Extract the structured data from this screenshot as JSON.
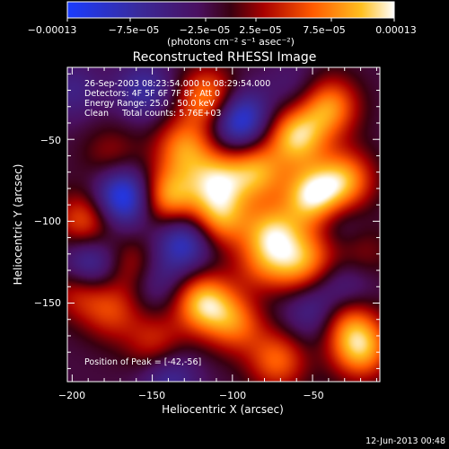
{
  "chart_data": {
    "type": "heatmap",
    "title": "Reconstructed RHESSI Image",
    "xlabel": "Heliocentric X (arcsec)",
    "ylabel": "Heliocentric Y (arcsec)",
    "xlim": [
      -203,
      -8
    ],
    "ylim": [
      -198,
      -6
    ],
    "xticks": [
      -200,
      -150,
      -100,
      -50
    ],
    "xtick_labels": [
      "−200",
      "−150",
      "−100",
      "−50"
    ],
    "yticks": [
      -50,
      -100,
      -150
    ],
    "ytick_labels": [
      "−50",
      "−100",
      "−150"
    ],
    "colorbar": {
      "range": [
        -0.00013,
        0.00013
      ],
      "ticks": [
        -0.00013,
        -7.5e-05,
        -2.5e-05,
        2.5e-05,
        7.5e-05,
        0.00013
      ],
      "tick_labels": [
        "−0.00013",
        "−7.5e−05",
        "−2.5e−05",
        "2.5e−05",
        "7.5e−05",
        "0.00013"
      ],
      "units_label": "(photons cm⁻² s⁻¹ asec⁻²)"
    },
    "annotations": [
      "26-Sep-2003 08:23:54.000 to 08:29:54.000",
      "Detectors: 4F 5F 6F 7F 8F, Att 0",
      "Energy Range: 25.0 - 50.0 keV",
      "Clean     Total counts: 5.76E+03"
    ],
    "peak_label": "Position of Peak = [-42,-56]",
    "timestamp": "12-Jun-2013 00:48",
    "sources": [
      {
        "x": -115,
        "y": -25,
        "v": 0.0001
      },
      {
        "x": -60,
        "y": -48,
        "v": 0.00012
      },
      {
        "x": -40,
        "y": -30,
        "v": 0.0001
      },
      {
        "x": -30,
        "y": -75,
        "v": 0.0001
      },
      {
        "x": -50,
        "y": -85,
        "v": 0.00013
      },
      {
        "x": -85,
        "y": -70,
        "v": 0.0001
      },
      {
        "x": -110,
        "y": -75,
        "v": 0.0001
      },
      {
        "x": -130,
        "y": -55,
        "v": 9e-05
      },
      {
        "x": -140,
        "y": -85,
        "v": 0.00011
      },
      {
        "x": -108,
        "y": -98,
        "v": 0.0001
      },
      {
        "x": -75,
        "y": -108,
        "v": 0.00011
      },
      {
        "x": -82,
        "y": -132,
        "v": 9e-05
      },
      {
        "x": -60,
        "y": -128,
        "v": 7e-05
      },
      {
        "x": -48,
        "y": -118,
        "v": 5e-05
      },
      {
        "x": -192,
        "y": -100,
        "v": 8e-05
      },
      {
        "x": -195,
        "y": -140,
        "v": 8e-05
      },
      {
        "x": -175,
        "y": -155,
        "v": 6e-05
      },
      {
        "x": -160,
        "y": -128,
        "v": 7e-05
      },
      {
        "x": -118,
        "y": -150,
        "v": 0.00012
      },
      {
        "x": -98,
        "y": -162,
        "v": 8e-05
      },
      {
        "x": -148,
        "y": -175,
        "v": 6e-05
      },
      {
        "x": -72,
        "y": -185,
        "v": 8e-05
      },
      {
        "x": -28,
        "y": -160,
        "v": 7e-05
      },
      {
        "x": -20,
        "y": -178,
        "v": 0.00011
      },
      {
        "x": -175,
        "y": -60,
        "v": 4e-05
      },
      {
        "x": -20,
        "y": -120,
        "v": 4e-05
      },
      {
        "x": -155,
        "y": -20,
        "v": -6e-05
      },
      {
        "x": -96,
        "y": -38,
        "v": -0.00011
      },
      {
        "x": -168,
        "y": -85,
        "v": -0.00012
      },
      {
        "x": -130,
        "y": -112,
        "v": -9e-05
      },
      {
        "x": -190,
        "y": -128,
        "v": -0.0001
      },
      {
        "x": -82,
        "y": -138,
        "v": -5e-05
      },
      {
        "x": -200,
        "y": -20,
        "v": -4e-05
      },
      {
        "x": -150,
        "y": -135,
        "v": -6e-05
      },
      {
        "x": -50,
        "y": -155,
        "v": -5e-05
      },
      {
        "x": -140,
        "y": -195,
        "v": -6e-05
      },
      {
        "x": -28,
        "y": -140,
        "v": -5e-05
      },
      {
        "x": -35,
        "y": -103,
        "v": -4e-05
      },
      {
        "x": -60,
        "y": -20,
        "v": -3e-05
      }
    ]
  }
}
